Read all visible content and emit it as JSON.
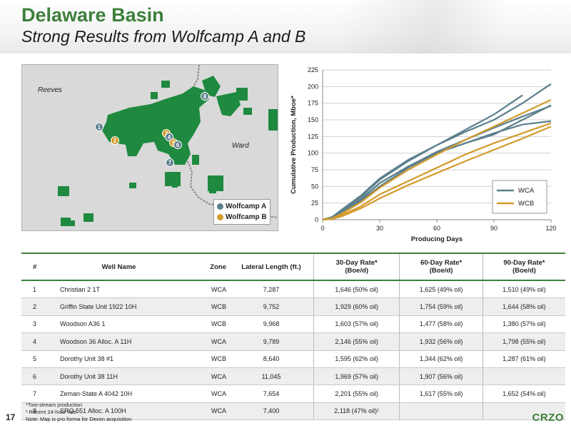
{
  "header": {
    "title": "Delaware Basin",
    "subtitle": "Strong Results from Wolfcamp A and B"
  },
  "map": {
    "county_labels": [
      "Reeves",
      "Ward"
    ],
    "legend": [
      {
        "label": "Wolfcamp A",
        "color": "#5c7f8d"
      },
      {
        "label": "Wolfcamp B",
        "color": "#d39a2b"
      }
    ],
    "wells": [
      {
        "num": "1",
        "zone": "WCA"
      },
      {
        "num": "2",
        "zone": "WCB"
      },
      {
        "num": "3",
        "zone": "WCB"
      },
      {
        "num": "4",
        "zone": "WCA"
      },
      {
        "num": "5",
        "zone": "WCB"
      },
      {
        "num": "6",
        "zone": "WCA"
      },
      {
        "num": "7",
        "zone": "WCA"
      },
      {
        "num": "8",
        "zone": "WCA"
      }
    ],
    "acreage_color": "#1f8a3f"
  },
  "chart_data": {
    "type": "line",
    "title": "",
    "xlabel": "Producing Days",
    "ylabel": "Cumulative Production, Mboe*",
    "xlim": [
      0,
      120
    ],
    "ylim": [
      0,
      225
    ],
    "x_ticks": [
      "0",
      "30",
      "60",
      "90",
      "120"
    ],
    "y_ticks": [
      "0",
      "25",
      "50",
      "75",
      "100",
      "125",
      "150",
      "175",
      "200",
      "225"
    ],
    "grid": true,
    "legend_position": "bottom-right",
    "legend": [
      {
        "name": "WCA",
        "color": "#5c7f8d"
      },
      {
        "name": "WCB",
        "color": "#d39a2b"
      }
    ],
    "series": [
      {
        "group": "WCA",
        "color": "#5c7f8d",
        "x": [
          0,
          5,
          10,
          20,
          30,
          45,
          60,
          75,
          90,
          105,
          120
        ],
        "y": [
          0,
          3,
          12,
          30,
          55,
          80,
          102,
          120,
          138,
          155,
          171
        ]
      },
      {
        "group": "WCA",
        "color": "#5c7f8d",
        "x": [
          0,
          5,
          10,
          20,
          30,
          45,
          60,
          75,
          90,
          105,
          120
        ],
        "y": [
          0,
          4,
          14,
          34,
          60,
          88,
          112,
          132,
          150,
          175,
          204
        ]
      },
      {
        "group": "WCA",
        "color": "#5c7f8d",
        "x": [
          0,
          5,
          10,
          20,
          30,
          45,
          60,
          75,
          90,
          105
        ],
        "y": [
          0,
          4,
          15,
          36,
          62,
          90,
          112,
          135,
          158,
          187
        ]
      },
      {
        "group": "WCA",
        "color": "#5c7f8d",
        "x": [
          0,
          5,
          10,
          20,
          30,
          45,
          60,
          75,
          90,
          105,
          120
        ],
        "y": [
          0,
          3,
          12,
          31,
          55,
          80,
          100,
          115,
          128,
          150,
          172
        ]
      },
      {
        "group": "WCA",
        "color": "#5c7f8d",
        "x": [
          0,
          5,
          10,
          20,
          30,
          45,
          60,
          75,
          90,
          105,
          120
        ],
        "y": [
          0,
          3,
          11,
          28,
          50,
          78,
          100,
          115,
          130,
          143,
          148
        ]
      },
      {
        "group": "WCB",
        "color": "#d39a2b",
        "x": [
          0,
          5,
          10,
          20,
          30,
          45,
          60,
          75,
          90,
          105,
          120
        ],
        "y": [
          0,
          2,
          9,
          26,
          48,
          75,
          98,
          120,
          140,
          160,
          180
        ]
      },
      {
        "group": "WCB",
        "color": "#d39a2b",
        "x": [
          0,
          5,
          10,
          20,
          30,
          45,
          60,
          75,
          90,
          105,
          120
        ],
        "y": [
          0,
          2,
          7,
          20,
          38,
          58,
          78,
          98,
          115,
          130,
          145
        ]
      },
      {
        "group": "WCB",
        "color": "#d39a2b",
        "x": [
          0,
          5,
          10,
          20,
          30,
          45,
          60,
          75,
          90,
          105,
          120
        ],
        "y": [
          0,
          1,
          5,
          17,
          32,
          52,
          70,
          88,
          105,
          122,
          140
        ]
      }
    ]
  },
  "table": {
    "headers": [
      "#",
      "Well Name",
      "Zone",
      "Lateral Length (ft.)",
      "30-Day Rate*\n(Boe/d)",
      "60-Day Rate*\n(Boe/d)",
      "90-Day Rate*\n(Boe/d)"
    ],
    "rows": [
      [
        "1",
        "Christian 2 1T",
        "WCA",
        "7,287",
        "1,646 (50% oil)",
        "1,625 (49% oil)",
        "1,510 (49% oil)"
      ],
      [
        "2",
        "Griffin State Unit 1922 10H",
        "WCB",
        "9,752",
        "1,929 (60% oil)",
        "1,754 (59% oil)",
        "1,644 (58% oil)"
      ],
      [
        "3",
        "Woodson A36 1",
        "WCB",
        "9,968",
        "1,603 (57% oil)",
        "1,477 (58% oil)",
        "1,380 (57% oil)"
      ],
      [
        "4",
        "Woodson 36 Alloc. A 11H",
        "WCA",
        "9,789",
        "2,146 (55% oil)",
        "1,932 (56% oil)",
        "1,798 (55% oil)"
      ],
      [
        "5",
        "Dorothy Unit 38 #1",
        "WCB",
        "8,640",
        "1,595 (62% oil)",
        "1,344 (62% oil)",
        "1,287 (61% oil)"
      ],
      [
        "6",
        "Dorothy Unit 38 11H",
        "WCA",
        "11,045",
        "1,969 (57% oil)",
        "1,907 (56% oil)",
        ""
      ],
      [
        "7",
        "Zeman-State A 4042 10H",
        "WCA",
        "7,654",
        "2,201 (55% oil)",
        "1,617 (55% oil)",
        "1,652 (54% oil)"
      ],
      [
        "8",
        "SRO 551 Alloc. A 100H",
        "WCA",
        "7,400",
        "2,118 (47% oil)¹",
        "",
        ""
      ]
    ]
  },
  "footnotes": [
    "*Two-stream production",
    "¹ Recent 24-hour rate",
    "Note: Map is pro forma for Devon acquisition"
  ],
  "page_number": "17",
  "logo": "CRZO"
}
